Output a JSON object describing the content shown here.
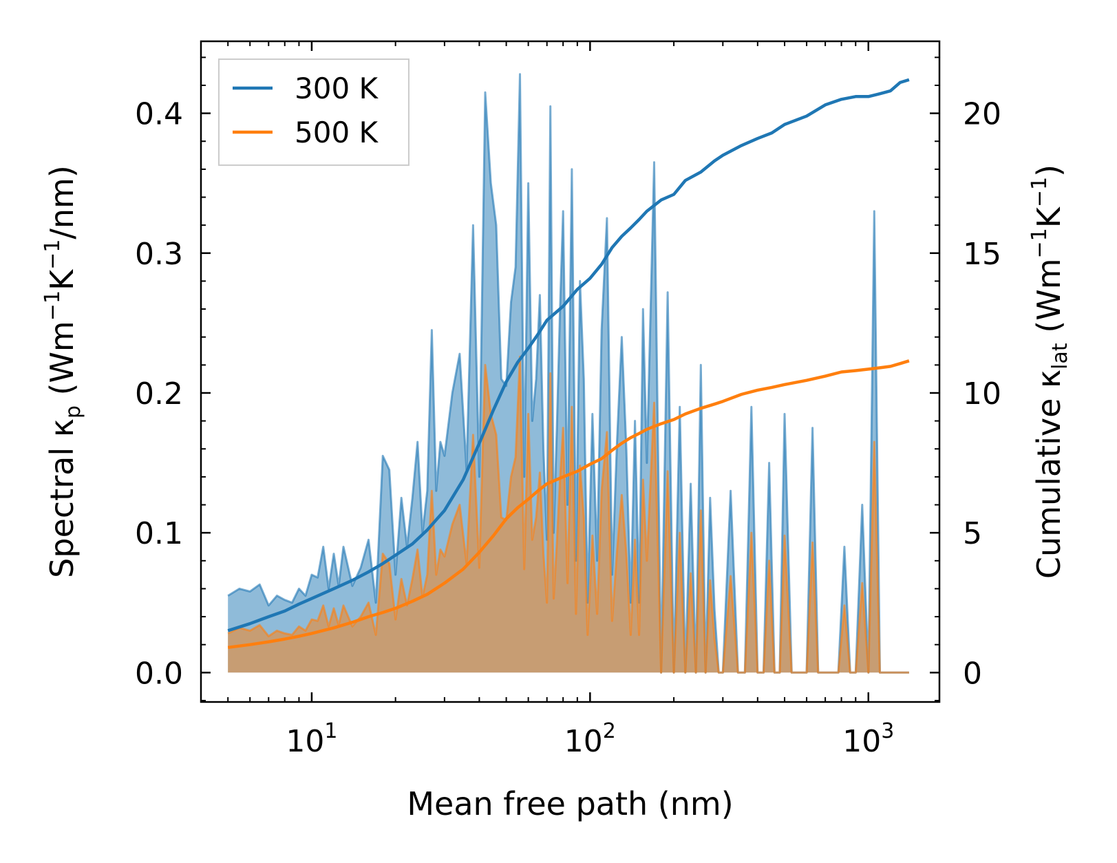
{
  "chart_data": {
    "type": "area+line",
    "xscale": "log",
    "xlim": [
      4,
      1800
    ],
    "ylim_left": [
      -0.021,
      0.4515
    ],
    "ylim_right": [
      -1.05,
      22.575
    ],
    "xlabel": "Mean free path (nm)",
    "ylabel_left": {
      "pre": "Spectral κ",
      "sub": "p",
      "open": " (Wm",
      "exp1": "−1",
      "mid": "K",
      "exp2": "−1",
      "post": "/nm)"
    },
    "ylabel_right": {
      "pre": "Cumulative κ",
      "sub": "lat",
      "open": " (Wm",
      "exp1": "−1",
      "mid": "K",
      "exp2": "−1",
      "post": ")"
    },
    "x_ticks": [
      {
        "value": 10,
        "base": "10",
        "exp": "1"
      },
      {
        "value": 100,
        "base": "10",
        "exp": "2"
      },
      {
        "value": 1000,
        "base": "10",
        "exp": "3"
      }
    ],
    "y_ticks_left": [
      {
        "value": 0.0,
        "label": "0.0"
      },
      {
        "value": 0.1,
        "label": "0.1"
      },
      {
        "value": 0.2,
        "label": "0.2"
      },
      {
        "value": 0.3,
        "label": "0.3"
      },
      {
        "value": 0.4,
        "label": "0.4"
      }
    ],
    "y_ticks_right": [
      {
        "value": 0,
        "label": "0"
      },
      {
        "value": 5,
        "label": "5"
      },
      {
        "value": 10,
        "label": "10"
      },
      {
        "value": 15,
        "label": "15"
      },
      {
        "value": 20,
        "label": "20"
      }
    ],
    "legend": {
      "placement": "top-left",
      "entries": [
        {
          "name": "300 K",
          "color": "#1f77b4"
        },
        {
          "name": "500 K",
          "color": "#ff7f0e"
        }
      ]
    },
    "series": [
      {
        "name": "300 K",
        "color": "#1f77b4",
        "fill_color": "#1f77b4",
        "fill_opacity": 0.5,
        "spectral": {
          "x": [
            5,
            5.5,
            6,
            6.5,
            7,
            7.5,
            8,
            8.5,
            9,
            9.5,
            10,
            10.5,
            11,
            11.5,
            12,
            12.5,
            13,
            14,
            15,
            16,
            17,
            18,
            19,
            20,
            21,
            22,
            23,
            24,
            25,
            26,
            27,
            28,
            29,
            30,
            32,
            34,
            36,
            38,
            40,
            42,
            44,
            46,
            48,
            50,
            52,
            54,
            56,
            58,
            60,
            62,
            64,
            66,
            68,
            70,
            72,
            74,
            76,
            78,
            80,
            83,
            86,
            89,
            92,
            95,
            98,
            102,
            106,
            110,
            115,
            120,
            125,
            130,
            135,
            140,
            145,
            150,
            155,
            160,
            170,
            180,
            190,
            200,
            210,
            220,
            230,
            240,
            250,
            260,
            270,
            280,
            290,
            300,
            320,
            340,
            360,
            380,
            400,
            420,
            440,
            460,
            480,
            500,
            530,
            560,
            600,
            630,
            660,
            700,
            740,
            780,
            820,
            860,
            900,
            950,
            1000,
            1050,
            1100,
            1150,
            1200,
            1250,
            1300,
            1350,
            1400
          ],
          "y": [
            0.055,
            0.06,
            0.058,
            0.063,
            0.048,
            0.055,
            0.052,
            0.05,
            0.06,
            0.055,
            0.07,
            0.068,
            0.09,
            0.06,
            0.085,
            0.062,
            0.09,
            0.062,
            0.075,
            0.095,
            0.05,
            0.155,
            0.145,
            0.07,
            0.125,
            0.09,
            0.125,
            0.165,
            0.1,
            0.13,
            0.245,
            0.13,
            0.165,
            0.155,
            0.2,
            0.228,
            0.145,
            0.32,
            0.14,
            0.415,
            0.35,
            0.32,
            0.21,
            0.205,
            0.265,
            0.29,
            0.428,
            0.14,
            0.35,
            0.18,
            0.21,
            0.27,
            0.16,
            0.095,
            0.405,
            0.1,
            0.175,
            0.26,
            0.33,
            0.12,
            0.36,
            0.08,
            0.28,
            0.21,
            0.05,
            0.185,
            0.08,
            0.245,
            0.325,
            0.07,
            0.165,
            0.24,
            0.16,
            0.05,
            0.18,
            0.05,
            0.26,
            0.15,
            0.365,
            0.0,
            0.272,
            0.0,
            0.19,
            0.0,
            0.135,
            0.0,
            0.22,
            0.0,
            0.125,
            0.045,
            0.0,
            0.0,
            0.13,
            0.0,
            0.0,
            0.19,
            0.0,
            0.0,
            0.15,
            0.0,
            0.0,
            0.185,
            0.0,
            0.0,
            0.0,
            0.175,
            0.0,
            0.0,
            0.0,
            0.0,
            0.09,
            0.0,
            0.0,
            0.12,
            0.0,
            0.33,
            0.0,
            0.0,
            0.0,
            0.0,
            0.0,
            0.0,
            0.0
          ]
        },
        "cumulative": {
          "x": [
            5,
            6,
            7,
            8,
            9,
            10,
            12,
            14,
            16,
            18,
            20,
            23,
            26,
            30,
            35,
            40,
            45,
            50,
            55,
            60,
            65,
            70,
            80,
            90,
            100,
            110,
            120,
            130,
            140,
            150,
            160,
            180,
            200,
            220,
            250,
            280,
            300,
            350,
            400,
            450,
            500,
            600,
            700,
            800,
            900,
            1000,
            1100,
            1200,
            1300,
            1400
          ],
          "y": [
            1.5,
            1.75,
            2.0,
            2.2,
            2.45,
            2.65,
            3.0,
            3.3,
            3.6,
            3.9,
            4.2,
            4.6,
            5.1,
            5.8,
            6.9,
            8.2,
            9.4,
            10.4,
            11.1,
            11.6,
            12.1,
            12.6,
            13.1,
            13.7,
            14.1,
            14.6,
            15.2,
            15.6,
            15.9,
            16.2,
            16.5,
            16.9,
            17.1,
            17.6,
            17.9,
            18.3,
            18.5,
            18.85,
            19.1,
            19.3,
            19.6,
            19.9,
            20.3,
            20.5,
            20.6,
            20.6,
            20.7,
            20.8,
            21.1,
            21.2
          ]
        }
      },
      {
        "name": "500 K",
        "color": "#ff7f0e",
        "fill_color": "#ff7f0e",
        "fill_opacity": 0.5,
        "spectral": {
          "x": [
            5,
            5.5,
            6,
            6.5,
            7,
            7.5,
            8,
            8.5,
            9,
            9.5,
            10,
            10.5,
            11,
            11.5,
            12,
            12.5,
            13,
            14,
            15,
            16,
            17,
            18,
            19,
            20,
            21,
            22,
            23,
            24,
            25,
            26,
            27,
            28,
            29,
            30,
            32,
            34,
            36,
            38,
            40,
            42,
            44,
            46,
            48,
            50,
            52,
            54,
            56,
            58,
            60,
            62,
            64,
            66,
            68,
            70,
            72,
            74,
            76,
            78,
            80,
            83,
            86,
            89,
            92,
            95,
            98,
            102,
            106,
            110,
            115,
            120,
            125,
            130,
            135,
            140,
            145,
            150,
            155,
            160,
            170,
            180,
            190,
            200,
            210,
            220,
            230,
            240,
            250,
            260,
            270,
            280,
            290,
            300,
            320,
            340,
            360,
            380,
            400,
            420,
            440,
            460,
            480,
            500,
            530,
            560,
            600,
            630,
            660,
            700,
            740,
            780,
            820,
            860,
            900,
            950,
            1000,
            1050,
            1100,
            1150,
            1200,
            1250,
            1300,
            1350,
            1400
          ],
          "y": [
            0.028,
            0.032,
            0.03,
            0.034,
            0.026,
            0.03,
            0.028,
            0.027,
            0.033,
            0.03,
            0.038,
            0.037,
            0.048,
            0.033,
            0.046,
            0.034,
            0.048,
            0.033,
            0.04,
            0.05,
            0.027,
            0.085,
            0.078,
            0.038,
            0.067,
            0.048,
            0.067,
            0.088,
            0.054,
            0.07,
            0.13,
            0.07,
            0.088,
            0.083,
            0.106,
            0.12,
            0.078,
            0.17,
            0.075,
            0.22,
            0.185,
            0.17,
            0.111,
            0.109,
            0.14,
            0.154,
            0.226,
            0.074,
            0.185,
            0.095,
            0.111,
            0.143,
            0.085,
            0.05,
            0.214,
            0.053,
            0.093,
            0.138,
            0.175,
            0.064,
            0.19,
            0.042,
            0.148,
            0.111,
            0.027,
            0.098,
            0.042,
            0.13,
            0.172,
            0.037,
            0.087,
            0.127,
            0.085,
            0.027,
            0.095,
            0.027,
            0.138,
            0.08,
            0.193,
            0.0,
            0.144,
            0.0,
            0.1,
            0.0,
            0.071,
            0.0,
            0.116,
            0.0,
            0.066,
            0.024,
            0.0,
            0.0,
            0.069,
            0.0,
            0.0,
            0.1,
            0.0,
            0.0,
            0.08,
            0.0,
            0.0,
            0.098,
            0.0,
            0.0,
            0.0,
            0.093,
            0.0,
            0.0,
            0.0,
            0.0,
            0.048,
            0.0,
            0.0,
            0.064,
            0.0,
            0.165,
            0.0,
            0.0,
            0.0,
            0.0,
            0.0,
            0.0,
            0.0
          ]
        },
        "cumulative": {
          "x": [
            5,
            6,
            7,
            8,
            9,
            10,
            12,
            14,
            16,
            18,
            20,
            23,
            26,
            30,
            35,
            40,
            45,
            50,
            55,
            60,
            65,
            70,
            80,
            90,
            100,
            110,
            120,
            130,
            140,
            150,
            160,
            180,
            200,
            220,
            250,
            280,
            300,
            350,
            400,
            450,
            500,
            600,
            700,
            800,
            900,
            1000,
            1100,
            1200,
            1300,
            1400
          ],
          "y": [
            0.9,
            1.0,
            1.1,
            1.2,
            1.3,
            1.4,
            1.6,
            1.8,
            2.0,
            2.15,
            2.3,
            2.55,
            2.8,
            3.2,
            3.7,
            4.3,
            4.9,
            5.5,
            5.9,
            6.2,
            6.5,
            6.75,
            7.0,
            7.2,
            7.45,
            7.65,
            7.95,
            8.2,
            8.4,
            8.55,
            8.7,
            8.9,
            9.05,
            9.25,
            9.45,
            9.6,
            9.7,
            9.95,
            10.1,
            10.2,
            10.3,
            10.45,
            10.6,
            10.75,
            10.8,
            10.85,
            10.9,
            10.95,
            11.05,
            11.15
          ]
        }
      }
    ]
  }
}
